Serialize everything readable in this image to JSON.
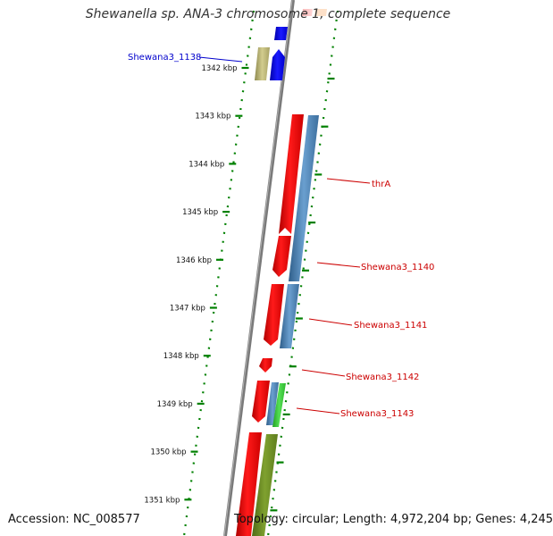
{
  "title": "Shewanella sp. ANA-3 chromosome 1, complete sequence",
  "accession": "Accession: NC_008577",
  "topology": "Topology: circular; Length: 4,972,204 bp; Genes: 4,245",
  "ruler_labels": [
    "1342 kbp",
    "1343 kbp",
    "1344 kbp",
    "1345 kbp",
    "1346 kbp",
    "1347 kbp",
    "1348 kbp",
    "1349 kbp",
    "1350 kbp",
    "1351 kbp"
  ],
  "gene_labels": {
    "g1138": "Shewana3_1138",
    "thrA": "thrA",
    "g1140": "Shewana3_1140",
    "g1141": "Shewana3_1141",
    "g1142": "Shewana3_1142",
    "g1143": "Shewana3_1143"
  },
  "colors": {
    "backbone": "#808080",
    "ticks": "#008000",
    "cds": "#ff0000",
    "blast": "#4682b4",
    "rna_blue": "#0000ff",
    "olive": "#bdb76b",
    "label_red": "#cc0000",
    "label_blue": "#0000cc",
    "green": "#32cd32",
    "dark_olive": "#6b8e23"
  }
}
